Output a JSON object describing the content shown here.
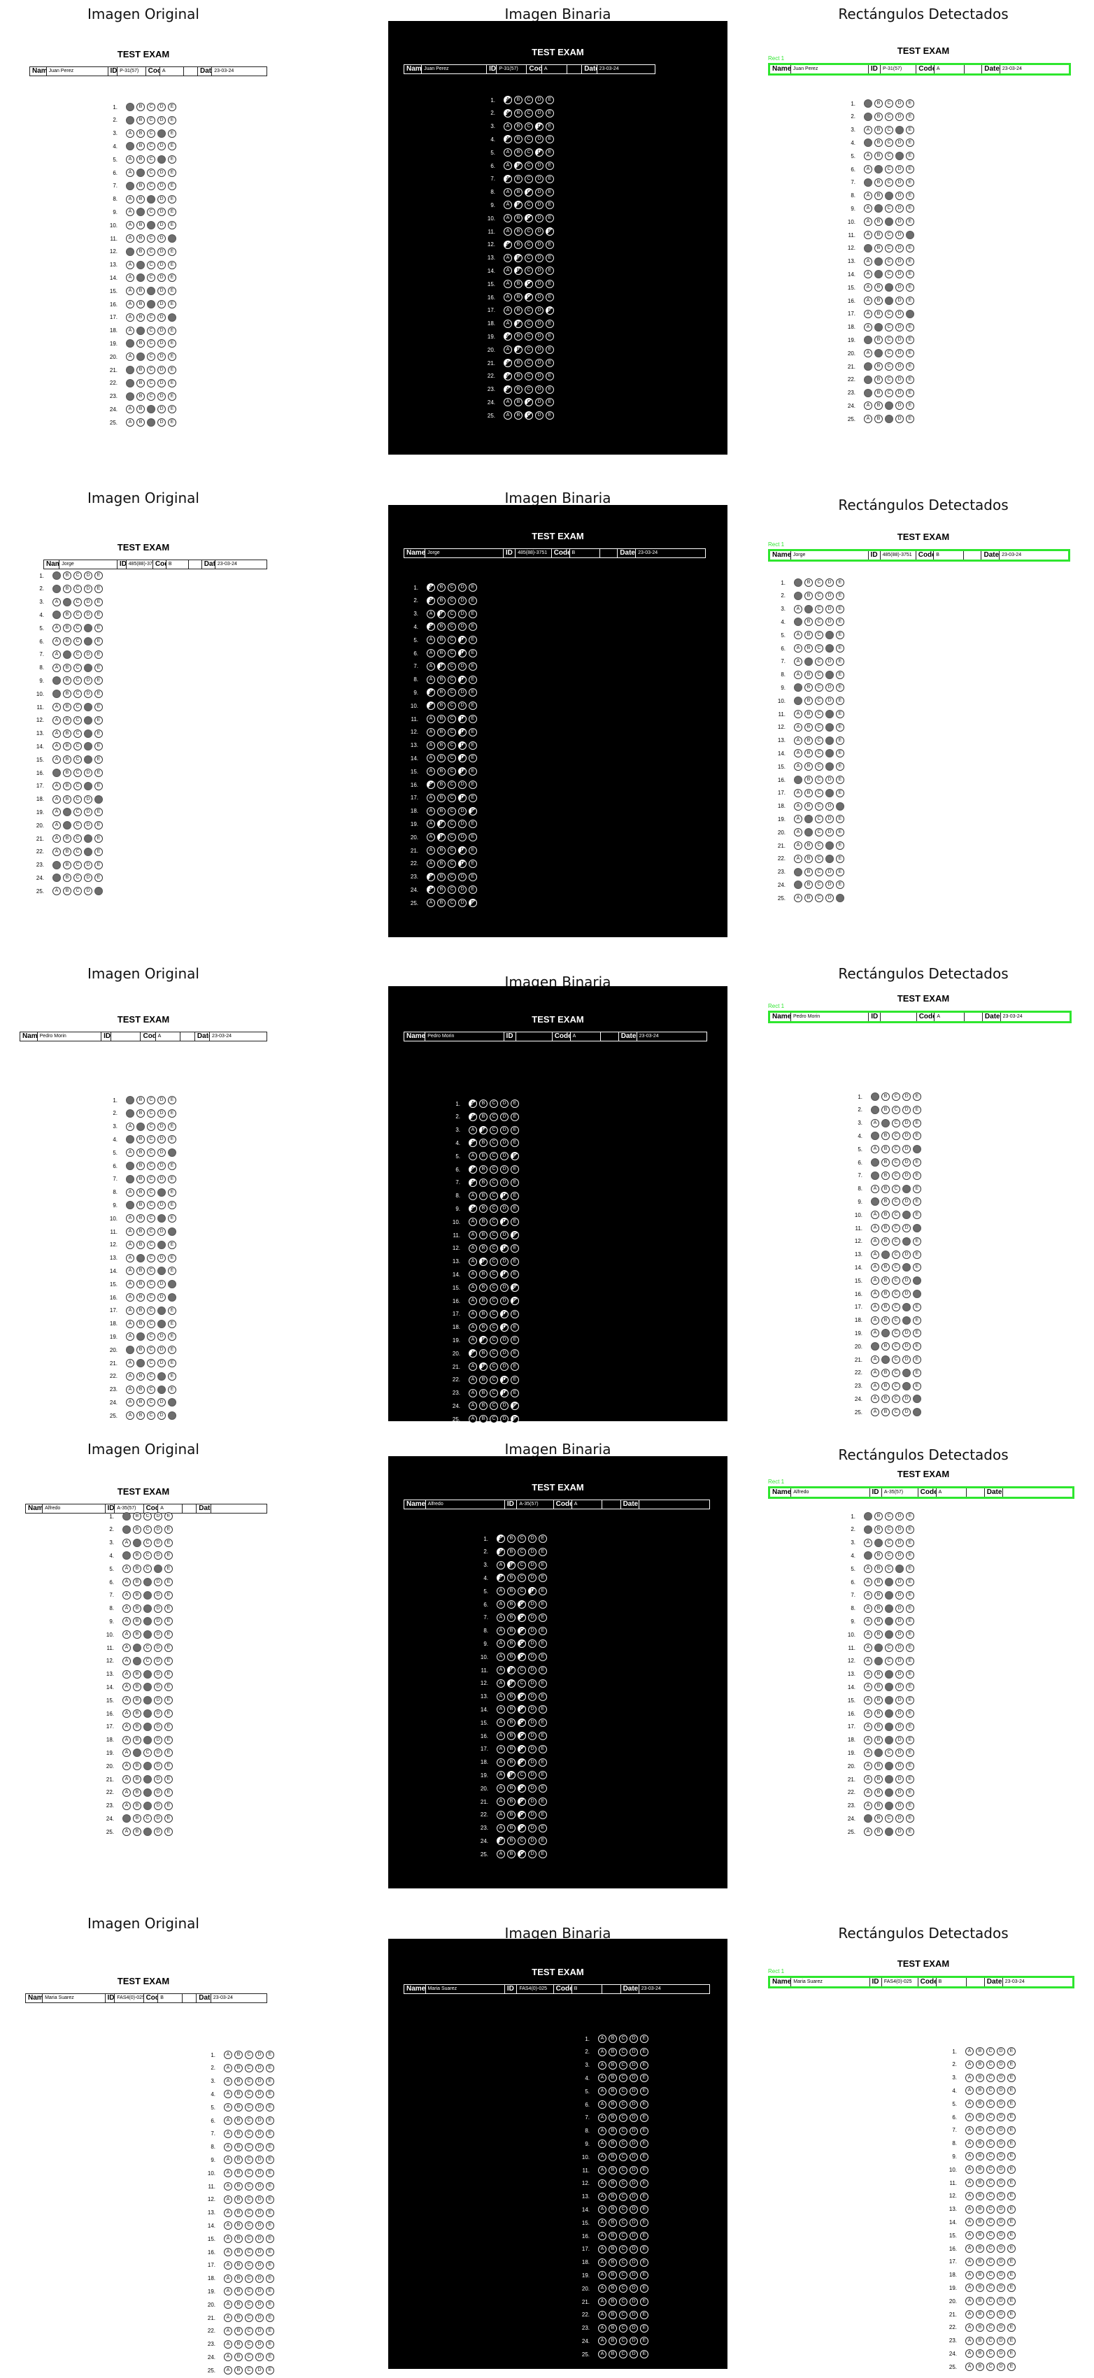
{
  "panel_titles": [
    "Imagen Original",
    "Imagen Binaria",
    "Rectángulos Detectados"
  ],
  "exam_title": "TEST EXAM",
  "header_labels": {
    "name": "Name",
    "id": "ID",
    "code": "Code",
    "date": "Date"
  },
  "rect_label": "Rect 1",
  "bubble_letters": [
    "A",
    "B",
    "C",
    "D",
    "E"
  ],
  "question_numbers": [
    "1.",
    "2.",
    "3.",
    "4.",
    "5.",
    "6.",
    "7.",
    "8.",
    "9.",
    "10.",
    "11.",
    "12.",
    "13.",
    "14.",
    "15.",
    "16.",
    "17.",
    "18.",
    "19.",
    "20.",
    "21.",
    "22.",
    "23.",
    "24.",
    "25."
  ],
  "students": [
    {
      "name": "Juan Perez",
      "id": "P-31(57)",
      "code": "A",
      "date": "23-03-24",
      "answers": [
        0,
        0,
        3,
        0,
        3,
        1,
        0,
        2,
        1,
        2,
        4,
        0,
        1,
        1,
        2,
        2,
        4,
        1,
        0,
        1,
        0,
        0,
        0,
        2,
        2
      ]
    },
    {
      "name": "Jorge",
      "id": "485(88)-3751",
      "code": "B",
      "date": "23-03-24",
      "answers": [
        0,
        0,
        1,
        0,
        3,
        3,
        1,
        3,
        0,
        0,
        3,
        3,
        3,
        3,
        3,
        0,
        3,
        4,
        1,
        1,
        3,
        3,
        0,
        0,
        4
      ]
    },
    {
      "name": "Pedro Morin",
      "id": "",
      "code": "A",
      "date": "23-03-24",
      "answers": [
        0,
        0,
        1,
        0,
        4,
        0,
        0,
        3,
        0,
        3,
        4,
        3,
        1,
        3,
        4,
        4,
        3,
        3,
        1,
        0,
        1,
        3,
        3,
        4,
        4
      ]
    },
    {
      "name": "Alfredo",
      "id": "A-35(57)",
      "code": "A",
      "date": "",
      "answers": [
        0,
        0,
        1,
        0,
        3,
        2,
        2,
        2,
        2,
        2,
        1,
        1,
        2,
        2,
        2,
        2,
        2,
        2,
        1,
        2,
        2,
        2,
        2,
        0,
        2
      ]
    },
    {
      "name": "Maria Suarez",
      "id": "FAS4(0)-025",
      "code": "B",
      "date": "23-03-24",
      "answers": [
        -1,
        -1,
        -1,
        -1,
        -1,
        -1,
        -1,
        -1,
        -1,
        -1,
        -1,
        -1,
        -1,
        -1,
        -1,
        -1,
        -1,
        -1,
        -1,
        -1,
        -1,
        -1,
        -1,
        -1,
        -1
      ]
    }
  ]
}
